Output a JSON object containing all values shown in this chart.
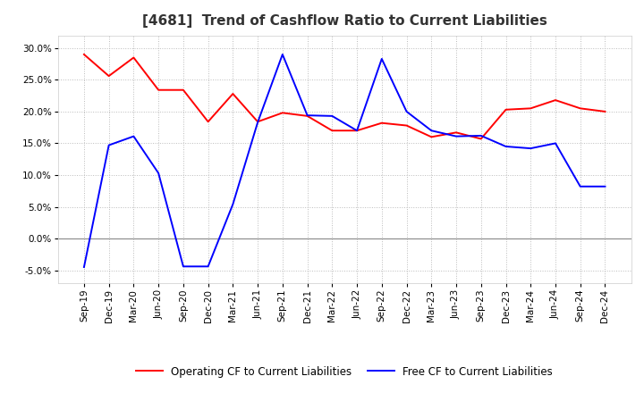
{
  "title": "[4681]  Trend of Cashflow Ratio to Current Liabilities",
  "x_labels": [
    "Sep-19",
    "Dec-19",
    "Mar-20",
    "Jun-20",
    "Sep-20",
    "Dec-20",
    "Mar-21",
    "Jun-21",
    "Sep-21",
    "Dec-21",
    "Mar-22",
    "Jun-22",
    "Sep-22",
    "Dec-22",
    "Mar-23",
    "Jun-23",
    "Sep-23",
    "Dec-23",
    "Mar-24",
    "Jun-24",
    "Sep-24",
    "Dec-24"
  ],
  "operating_cf": [
    0.29,
    0.256,
    0.285,
    0.234,
    0.234,
    0.184,
    0.228,
    0.184,
    0.198,
    0.193,
    0.17,
    0.17,
    0.182,
    0.178,
    0.16,
    0.167,
    0.157,
    0.203,
    0.205,
    0.218,
    0.205,
    0.2
  ],
  "free_cf": [
    -0.045,
    0.147,
    0.161,
    0.103,
    -0.044,
    -0.044,
    0.054,
    0.183,
    0.29,
    0.194,
    0.193,
    0.17,
    0.283,
    0.2,
    0.17,
    0.161,
    0.162,
    0.145,
    0.142,
    0.15,
    0.082,
    0.082
  ],
  "ylim_min": -0.07,
  "ylim_max": 0.32,
  "yticks": [
    -0.05,
    0.0,
    0.05,
    0.1,
    0.15,
    0.2,
    0.25,
    0.3
  ],
  "operating_color": "#FF0000",
  "free_color": "#0000FF",
  "background_color": "#FFFFFF",
  "plot_bg_color": "#FFFFFF",
  "grid_color": "#BBBBBB",
  "title_fontsize": 11,
  "title_color": "#333333",
  "axis_fontsize": 7.5,
  "legend_fontsize": 8.5,
  "linewidth": 1.4
}
